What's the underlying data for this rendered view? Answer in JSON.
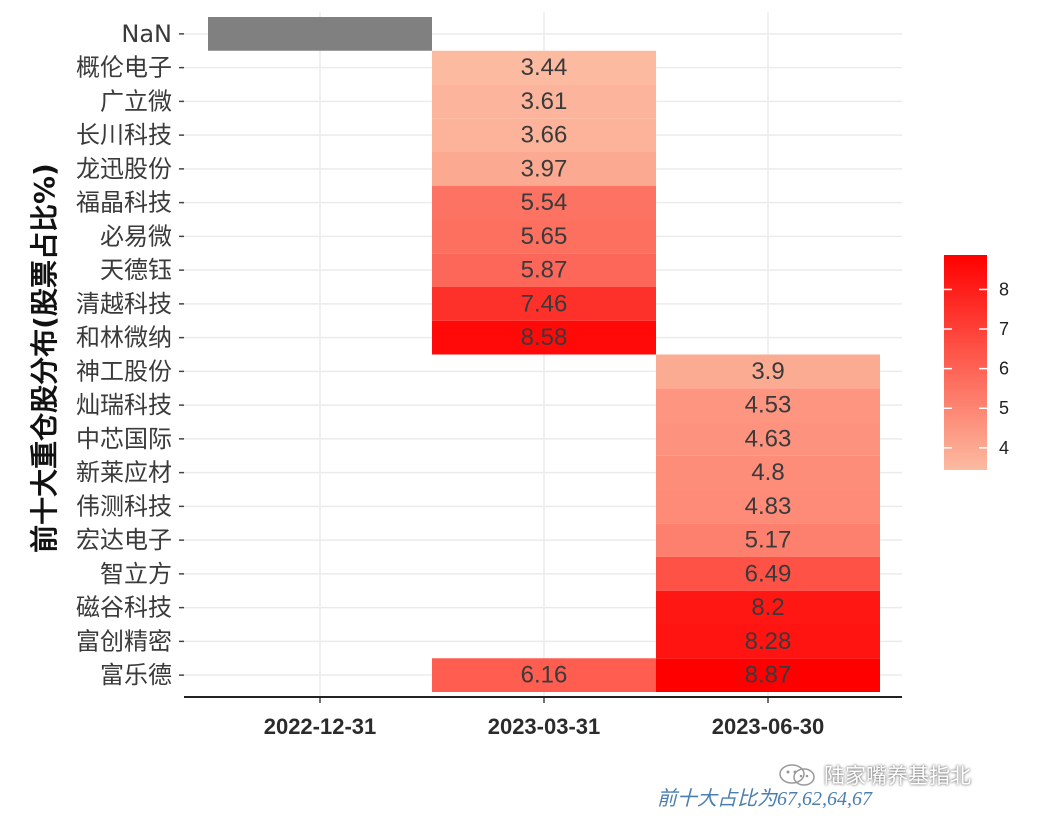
{
  "chart_data": {
    "type": "heatmap",
    "ylabel": "前十大重仓股分布(股票占比%)",
    "x_categories": [
      "2022-12-31",
      "2023-03-31",
      "2023-06-30"
    ],
    "y_categories": [
      "NaN",
      "概伦电子",
      "广立微",
      "长川科技",
      "龙迅股份",
      "福晶科技",
      "必易微",
      "天德钰",
      "清越科技",
      "和林微纳",
      "神工股份",
      "灿瑞科技",
      "中芯国际",
      "新莱应材",
      "伟测科技",
      "宏达电子",
      "智立方",
      "磁谷科技",
      "富创精密",
      "富乐德"
    ],
    "cells": [
      {
        "x": "2022-12-31",
        "y": "NaN",
        "value": null,
        "label": ""
      },
      {
        "x": "2023-03-31",
        "y": "概伦电子",
        "value": 3.44,
        "label": "3.44"
      },
      {
        "x": "2023-03-31",
        "y": "广立微",
        "value": 3.61,
        "label": "3.61"
      },
      {
        "x": "2023-03-31",
        "y": "长川科技",
        "value": 3.66,
        "label": "3.66"
      },
      {
        "x": "2023-03-31",
        "y": "龙迅股份",
        "value": 3.97,
        "label": "3.97"
      },
      {
        "x": "2023-03-31",
        "y": "福晶科技",
        "value": 5.54,
        "label": "5.54"
      },
      {
        "x": "2023-03-31",
        "y": "必易微",
        "value": 5.65,
        "label": "5.65"
      },
      {
        "x": "2023-03-31",
        "y": "天德钰",
        "value": 5.87,
        "label": "5.87"
      },
      {
        "x": "2023-03-31",
        "y": "清越科技",
        "value": 7.46,
        "label": "7.46"
      },
      {
        "x": "2023-03-31",
        "y": "和林微纳",
        "value": 8.58,
        "label": "8.58"
      },
      {
        "x": "2023-06-30",
        "y": "神工股份",
        "value": 3.9,
        "label": "3.9"
      },
      {
        "x": "2023-06-30",
        "y": "灿瑞科技",
        "value": 4.53,
        "label": "4.53"
      },
      {
        "x": "2023-06-30",
        "y": "中芯国际",
        "value": 4.63,
        "label": "4.63"
      },
      {
        "x": "2023-06-30",
        "y": "新莱应材",
        "value": 4.8,
        "label": "4.8"
      },
      {
        "x": "2023-06-30",
        "y": "伟测科技",
        "value": 4.83,
        "label": "4.83"
      },
      {
        "x": "2023-06-30",
        "y": "宏达电子",
        "value": 5.17,
        "label": "5.17"
      },
      {
        "x": "2023-06-30",
        "y": "智立方",
        "value": 6.49,
        "label": "6.49"
      },
      {
        "x": "2023-06-30",
        "y": "磁谷科技",
        "value": 8.2,
        "label": "8.2"
      },
      {
        "x": "2023-06-30",
        "y": "富创精密",
        "value": 8.28,
        "label": "8.28"
      },
      {
        "x": "2023-03-31",
        "y": "富乐德",
        "value": 6.16,
        "label": "6.16"
      },
      {
        "x": "2023-06-30",
        "y": "富乐德",
        "value": 8.87,
        "label": "8.87"
      }
    ],
    "color_scale": {
      "low": "#fcbba1",
      "high": "#ff0000",
      "na_color": "#808080",
      "min": 3.44,
      "max": 8.87
    },
    "legend": {
      "position": "right",
      "ticks": [
        4,
        5,
        6,
        7,
        8
      ]
    },
    "grid": true
  },
  "footnote": "前十大占比为67,62,64,67",
  "watermark": "陆家嘴养基指北"
}
